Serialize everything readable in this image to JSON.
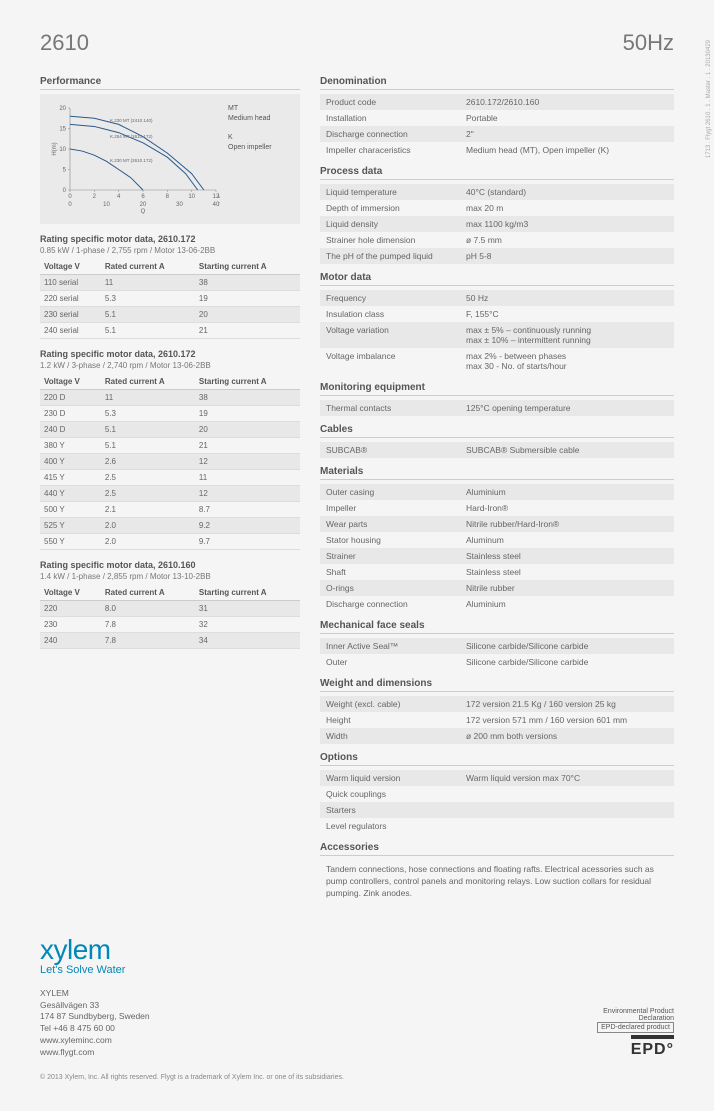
{
  "header": {
    "model": "2610",
    "hz": "50Hz"
  },
  "side_text": "1713 . Flygt 2610 . 1 . Master . 1 . 20130429",
  "performance": {
    "title": "Performance",
    "chart": {
      "type": "line",
      "xlabel": "Q",
      "ylabel": "H(m)",
      "x_ticks_top": [
        0,
        2,
        4,
        6,
        8,
        10,
        12
      ],
      "x_unit_top": "l/s",
      "x_ticks_bot": [
        0,
        10,
        20,
        30,
        40
      ],
      "x_unit_bot": "m³/h",
      "y_ticks": [
        0,
        5,
        10,
        15,
        20
      ],
      "xlim": [
        0,
        12
      ],
      "ylim": [
        0,
        20
      ],
      "curves": [
        {
          "label": "K.230 MT (2410.140)",
          "points": [
            [
              0,
              18
            ],
            [
              2,
              17.5
            ],
            [
              4,
              16
            ],
            [
              6,
              13
            ],
            [
              8,
              9
            ],
            [
              10,
              4
            ],
            [
              11,
              0
            ]
          ],
          "color": "#2a5a8a"
        },
        {
          "label": "K.254 MT (2610.172)",
          "points": [
            [
              0,
              16
            ],
            [
              2,
              15.5
            ],
            [
              4,
              14
            ],
            [
              6,
              11.5
            ],
            [
              8,
              8
            ],
            [
              9.5,
              4
            ],
            [
              10.5,
              0
            ]
          ],
          "color": "#2a5a8a"
        },
        {
          "label": "K.230 MT (2610.172)",
          "points": [
            [
              0,
              10
            ],
            [
              1,
              9.5
            ],
            [
              2,
              8.5
            ],
            [
              3,
              7
            ],
            [
              4,
              5
            ],
            [
              5,
              3
            ],
            [
              6,
              0
            ]
          ],
          "color": "#2a5a8a"
        }
      ],
      "legend": [
        {
          "code": "MT",
          "text": "Medium head"
        },
        {
          "code": "K",
          "text": "Open impeller"
        }
      ],
      "background_color": "#eaeaea",
      "axis_color": "#888",
      "line_width": 1
    }
  },
  "motor_tables": [
    {
      "title": "Rating specific motor data, 2610.172",
      "caption": "0.85 kW / 1-phase / 2,755 rpm / Motor 13-06-2BB",
      "columns": [
        "Voltage V",
        "Rated current A",
        "Starting current A"
      ],
      "rows": [
        [
          "110 serial",
          "11",
          "38"
        ],
        [
          "220 serial",
          "5.3",
          "19"
        ],
        [
          "230 serial",
          "5.1",
          "20"
        ],
        [
          "240 serial",
          "5.1",
          "21"
        ]
      ]
    },
    {
      "title": "Rating specific motor data, 2610.172",
      "caption": "1.2 kW / 3-phase / 2,740 rpm / Motor 13-06-2BB",
      "columns": [
        "Voltage V",
        "Rated current A",
        "Starting current A"
      ],
      "rows": [
        [
          "220 D",
          "11",
          "38"
        ],
        [
          "230 D",
          "5.3",
          "19"
        ],
        [
          "240 D",
          "5.1",
          "20"
        ],
        [
          "380 Y",
          "5.1",
          "21"
        ],
        [
          "400 Y",
          "2.6",
          "12"
        ],
        [
          "415 Y",
          "2.5",
          "11"
        ],
        [
          "440 Y",
          "2.5",
          "12"
        ],
        [
          "500 Y",
          "2.1",
          "8.7"
        ],
        [
          "525 Y",
          "2.0",
          "9.2"
        ],
        [
          "550 Y",
          "2.0",
          "9.7"
        ]
      ]
    },
    {
      "title": "Rating specific motor data, 2610.160",
      "caption": "1.4 kW / 1-phase / 2,855 rpm / Motor 13-10-2BB",
      "columns": [
        "Voltage V",
        "Rated current A",
        "Starting current A"
      ],
      "rows": [
        [
          "220",
          "8.0",
          "31"
        ],
        [
          "230",
          "7.8",
          "32"
        ],
        [
          "240",
          "7.8",
          "34"
        ]
      ]
    }
  ],
  "spec_sections": [
    {
      "title": "Denomination",
      "rows": [
        [
          "Product code",
          "2610.172/2610.160"
        ],
        [
          "Installation",
          "Portable"
        ],
        [
          "Discharge connection",
          "2\""
        ],
        [
          "Impeller characeristics",
          "Medium head (MT), Open impeller (K)"
        ]
      ]
    },
    {
      "title": "Process data",
      "rows": [
        [
          "Liquid temperature",
          "40°C (standard)"
        ],
        [
          "Depth of immersion",
          "max 20 m"
        ],
        [
          "Liquid density",
          "max 1100 kg/m3"
        ],
        [
          "Strainer hole dimension",
          "ø 7.5 mm"
        ],
        [
          "The pH of the pumped liquid",
          "pH 5-8"
        ]
      ]
    },
    {
      "title": "Motor data",
      "rows": [
        [
          "Frequency",
          "50 Hz"
        ],
        [
          "Insulation class",
          "F, 155°C"
        ],
        [
          "Voltage variation",
          "max ± 5% – continuously running\nmax ± 10% – intermittent running"
        ],
        [
          "Voltage imbalance",
          "max 2% - between phases\nmax 30 - No. of starts/hour"
        ]
      ]
    },
    {
      "title": "Monitoring equipment",
      "rows": [
        [
          "Thermal contacts",
          "125°C opening temperature"
        ]
      ]
    },
    {
      "title": "Cables",
      "rows": [
        [
          "SUBCAB®",
          "SUBCAB® Submersible cable"
        ]
      ]
    },
    {
      "title": "Materials",
      "rows": [
        [
          "Outer casing",
          "Aluminium"
        ],
        [
          "Impeller",
          "Hard-Iron®"
        ],
        [
          "Wear parts",
          "Nitrile rubber/Hard-Iron®"
        ],
        [
          "Stator housing",
          "Aluminum"
        ],
        [
          "Strainer",
          "Stainless steel"
        ],
        [
          "Shaft",
          "Stainless steel"
        ],
        [
          "O-rings",
          "Nitrile rubber"
        ],
        [
          "Discharge connection",
          "Aluminium"
        ]
      ]
    },
    {
      "title": "Mechanical face seals",
      "rows": [
        [
          "Inner Active Seal™",
          "Silicone carbide/Silicone carbide"
        ],
        [
          "Outer",
          "Silicone carbide/Silicone carbide"
        ]
      ]
    },
    {
      "title": "Weight and dimensions",
      "rows": [
        [
          "Weight  (excl. cable)",
          "172 version 21.5 Kg / 160 version 25 kg"
        ],
        [
          "Height",
          "172 version 571 mm / 160 version 601 mm"
        ],
        [
          "Width",
          "ø 200 mm both versions"
        ]
      ]
    },
    {
      "title": "Options",
      "rows": [
        [
          "Warm liquid version",
          "Warm liquid version max 70°C"
        ],
        [
          "Quick couplings",
          ""
        ],
        [
          "Starters",
          ""
        ],
        [
          "Level regulators",
          ""
        ]
      ]
    },
    {
      "title": "Accessories",
      "desc": "Tandem connections, hose connections and floating rafts. Electrical acessories such as pump controllers, control panels and monitoring relays. Low suction collars for residual pumping. Zink anodes."
    }
  ],
  "footer": {
    "logo": "xylem",
    "tagline": "Let's Solve Water",
    "contact": [
      "XYLEM",
      "Gesällvägen 33",
      "174 87 Sundbyberg, Sweden",
      "Tel +46 8 475 60 00",
      "www.xyleminc.com",
      "www.flygt.com"
    ],
    "epd": {
      "line1": "Environmental Product",
      "line2": "Declaration",
      "line3": "EPD-declared product",
      "big": "EPD"
    },
    "copyright": "© 2013  Xylem, Inc.  All rights reserved. Flygt is a trademark of Xylem Inc. or one of its subsidiaries."
  }
}
